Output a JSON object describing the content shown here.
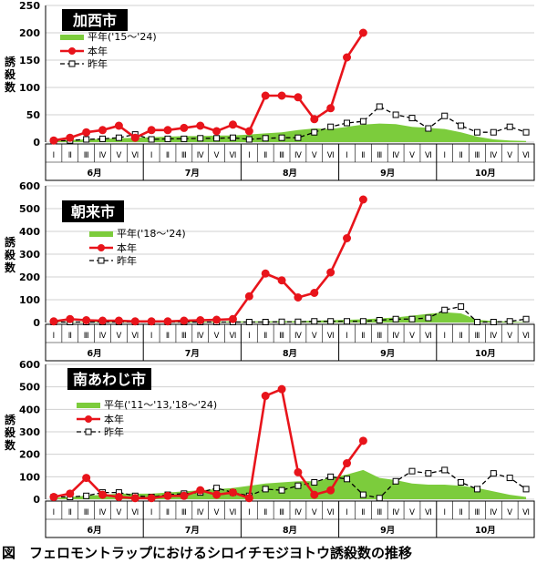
{
  "caption": "図　フェロモントラップにおけるシロイチモジヨトウ誘殺数の推移",
  "colors": {
    "this_year": "#e8141b",
    "average_fill": "#7ccc3c",
    "last_year": "#000000",
    "grid": "#d0d0d0"
  },
  "chart_data": [
    {
      "type": "line",
      "title": "加西市",
      "ylabel": "誘殺数",
      "ylim": [
        0,
        250
      ],
      "yticks": [
        0,
        50,
        100,
        150,
        200,
        250
      ],
      "period_labels": [
        "Ⅰ",
        "Ⅱ",
        "Ⅲ",
        "Ⅳ",
        "Ⅴ",
        "Ⅵ",
        "Ⅰ",
        "Ⅱ",
        "Ⅲ",
        "Ⅳ",
        "Ⅴ",
        "Ⅵ",
        "Ⅰ",
        "Ⅱ",
        "Ⅲ",
        "Ⅳ",
        "Ⅴ",
        "Ⅵ",
        "Ⅰ",
        "Ⅱ",
        "Ⅲ",
        "Ⅳ",
        "Ⅴ",
        "Ⅵ",
        "Ⅰ",
        "Ⅱ",
        "Ⅲ",
        "Ⅳ",
        "Ⅴ",
        "Ⅵ"
      ],
      "months": [
        "6月",
        "7月",
        "8月",
        "9月",
        "10月"
      ],
      "legend": [
        "平年('15～'24)",
        "本年",
        "昨年"
      ],
      "series": [
        {
          "name": "平年('15～'24)",
          "kind": "area",
          "values": [
            3,
            4,
            5,
            6,
            7,
            8,
            9,
            10,
            11,
            11,
            12,
            12,
            14,
            16,
            18,
            22,
            25,
            24,
            28,
            32,
            34,
            33,
            28,
            26,
            24,
            18,
            10,
            5,
            3,
            2
          ]
        },
        {
          "name": "本年",
          "kind": "line",
          "values": [
            3,
            8,
            18,
            22,
            30,
            8,
            22,
            22,
            26,
            30,
            20,
            32,
            20,
            85,
            85,
            82,
            42,
            62,
            155,
            200,
            null,
            null,
            null,
            null,
            null,
            null,
            null,
            null,
            null,
            null
          ]
        },
        {
          "name": "昨年",
          "kind": "dashed",
          "values": [
            2,
            3,
            5,
            6,
            8,
            14,
            5,
            6,
            6,
            7,
            7,
            8,
            5,
            7,
            8,
            8,
            18,
            28,
            35,
            38,
            65,
            50,
            44,
            25,
            48,
            30,
            18,
            18,
            28,
            18
          ]
        }
      ]
    },
    {
      "type": "line",
      "title": "朝来市",
      "ylabel": "誘殺数",
      "ylim": [
        0,
        600
      ],
      "yticks": [
        0,
        100,
        200,
        300,
        400,
        500,
        600
      ],
      "period_labels": [
        "Ⅰ",
        "Ⅱ",
        "Ⅲ",
        "Ⅳ",
        "Ⅴ",
        "Ⅵ",
        "Ⅰ",
        "Ⅱ",
        "Ⅲ",
        "Ⅳ",
        "Ⅴ",
        "Ⅵ",
        "Ⅰ",
        "Ⅱ",
        "Ⅲ",
        "Ⅳ",
        "Ⅴ",
        "Ⅵ",
        "Ⅰ",
        "Ⅱ",
        "Ⅲ",
        "Ⅳ",
        "Ⅴ",
        "Ⅵ",
        "Ⅰ",
        "Ⅱ",
        "Ⅲ",
        "Ⅳ",
        "Ⅴ",
        "Ⅵ"
      ],
      "months": [
        "6月",
        "7月",
        "8月",
        "9月",
        "10月"
      ],
      "legend": [
        "平年('18～'24)",
        "本年",
        "昨年"
      ],
      "series": [
        {
          "name": "平年('18～'24)",
          "kind": "area",
          "values": [
            2,
            2,
            3,
            3,
            3,
            3,
            3,
            3,
            4,
            4,
            4,
            5,
            5,
            5,
            6,
            6,
            8,
            10,
            12,
            14,
            18,
            22,
            30,
            38,
            45,
            40,
            12,
            6,
            4,
            2
          ]
        },
        {
          "name": "本年",
          "kind": "line",
          "values": [
            5,
            15,
            10,
            8,
            8,
            5,
            5,
            5,
            8,
            10,
            12,
            15,
            115,
            215,
            185,
            110,
            130,
            220,
            370,
            540,
            null,
            null,
            null,
            null,
            null,
            null,
            null,
            null,
            null,
            null
          ]
        },
        {
          "name": "昨年",
          "kind": "dashed",
          "values": [
            2,
            2,
            2,
            2,
            2,
            2,
            2,
            2,
            2,
            2,
            2,
            2,
            2,
            2,
            3,
            3,
            5,
            5,
            5,
            5,
            10,
            15,
            15,
            20,
            55,
            70,
            2,
            2,
            5,
            15
          ]
        }
      ]
    },
    {
      "type": "line",
      "title": "南あわじ市",
      "ylabel": "誘殺数",
      "ylim": [
        0,
        600
      ],
      "yticks": [
        0,
        100,
        200,
        300,
        400,
        500,
        600
      ],
      "period_labels": [
        "Ⅰ",
        "Ⅱ",
        "Ⅲ",
        "Ⅳ",
        "Ⅴ",
        "Ⅵ",
        "Ⅰ",
        "Ⅱ",
        "Ⅲ",
        "Ⅳ",
        "Ⅴ",
        "Ⅵ",
        "Ⅰ",
        "Ⅱ",
        "Ⅲ",
        "Ⅳ",
        "Ⅴ",
        "Ⅵ",
        "Ⅰ",
        "Ⅱ",
        "Ⅲ",
        "Ⅳ",
        "Ⅴ",
        "Ⅵ",
        "Ⅰ",
        "Ⅱ",
        "Ⅲ",
        "Ⅳ",
        "Ⅴ",
        "Ⅵ"
      ],
      "months": [
        "6月",
        "7月",
        "8月",
        "9月",
        "10月"
      ],
      "legend": [
        "平年('11～'13,'18～'24)",
        "本年",
        "昨年"
      ],
      "series": [
        {
          "name": "平年('11～'13,'18～'24)",
          "kind": "area",
          "values": [
            5,
            10,
            15,
            20,
            25,
            25,
            25,
            30,
            35,
            40,
            45,
            50,
            60,
            70,
            75,
            80,
            80,
            95,
            110,
            130,
            95,
            85,
            70,
            65,
            65,
            60,
            50,
            35,
            20,
            10
          ]
        },
        {
          "name": "本年",
          "kind": "line",
          "values": [
            10,
            25,
            95,
            20,
            10,
            5,
            5,
            15,
            15,
            40,
            20,
            30,
            5,
            460,
            490,
            120,
            20,
            40,
            160,
            260,
            null,
            null,
            null,
            null,
            null,
            null,
            null,
            null,
            null,
            null
          ]
        },
        {
          "name": "昨年",
          "kind": "dashed",
          "values": [
            10,
            10,
            15,
            30,
            30,
            15,
            10,
            20,
            25,
            30,
            50,
            30,
            15,
            45,
            40,
            60,
            75,
            100,
            90,
            20,
            5,
            80,
            125,
            115,
            130,
            75,
            45,
            115,
            95,
            45
          ]
        }
      ]
    }
  ]
}
